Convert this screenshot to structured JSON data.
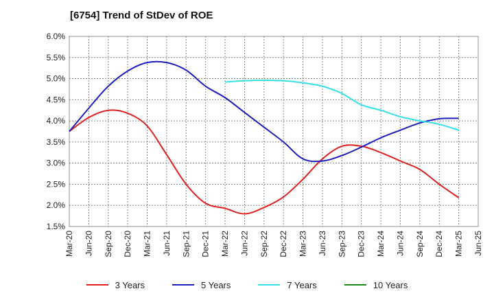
{
  "chart_data": {
    "type": "line",
    "title": "[6754]  Trend of StDev of ROE",
    "x_labels": [
      "Mar-20",
      "Jun-20",
      "Sep-20",
      "Dec-20",
      "Mar-21",
      "Jun-21",
      "Sep-21",
      "Dec-21",
      "Mar-22",
      "Jun-22",
      "Sep-22",
      "Dec-22",
      "Mar-23",
      "Jun-23",
      "Sep-23",
      "Dec-23",
      "Mar-24",
      "Jun-24",
      "Sep-24",
      "Dec-24",
      "Mar-25",
      "Jun-25"
    ],
    "y_ticks": [
      "6.0%",
      "5.5%",
      "5.0%",
      "4.5%",
      "4.0%",
      "3.5%",
      "3.0%",
      "2.5%",
      "2.0%",
      "1.5%"
    ],
    "ylim": [
      1.5,
      6.0
    ],
    "grid": true,
    "legend_position": "bottom",
    "series": [
      {
        "name": "3 Years",
        "color": "#e02020",
        "values": [
          3.75,
          4.08,
          4.25,
          4.18,
          3.88,
          3.2,
          2.5,
          2.05,
          1.93,
          1.8,
          1.95,
          2.2,
          2.62,
          3.1,
          3.4,
          3.4,
          3.25,
          3.05,
          2.85,
          2.5,
          2.18,
          null
        ]
      },
      {
        "name": "5 Years",
        "color": "#1c1cc0",
        "values": [
          3.75,
          4.3,
          4.82,
          5.18,
          5.38,
          5.38,
          5.2,
          4.82,
          4.55,
          4.2,
          3.85,
          3.5,
          3.1,
          3.05,
          3.18,
          3.38,
          3.6,
          3.78,
          3.95,
          4.05,
          4.06,
          null
        ]
      },
      {
        "name": "7 Years",
        "color": "#33e0e8",
        "values": [
          null,
          null,
          null,
          null,
          null,
          null,
          null,
          null,
          4.92,
          4.95,
          4.96,
          4.95,
          4.9,
          4.82,
          4.65,
          4.38,
          4.25,
          4.1,
          4.0,
          3.92,
          3.78,
          null
        ]
      },
      {
        "name": "10 Years",
        "color": "#1a8a1a",
        "values": [
          null,
          null,
          null,
          null,
          null,
          null,
          null,
          null,
          null,
          null,
          null,
          null,
          null,
          null,
          null,
          null,
          null,
          null,
          null,
          null,
          null,
          null
        ]
      }
    ]
  }
}
